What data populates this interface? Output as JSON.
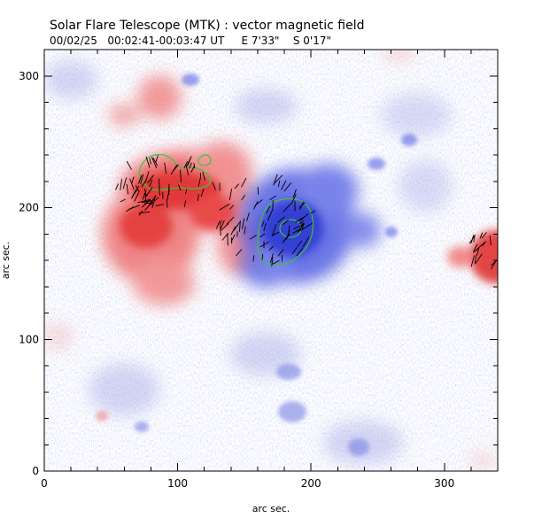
{
  "header": {
    "title": "Solar Flare Telescope (MTK) : vector magnetic field",
    "subtitle": "00/02/25   00:02:41-00:03:47 UT     E 7'33\"    S 0'17\""
  },
  "chart_data": {
    "type": "heatmap",
    "title": "Solar Flare Telescope (MTK) : vector magnetic field",
    "xlabel": "arc sec.",
    "ylabel": "arc sec.",
    "xlim": [
      0,
      340
    ],
    "ylim": [
      0,
      320
    ],
    "x_ticks": [
      {
        "value": 0,
        "label": "0"
      },
      {
        "value": 100,
        "label": "100"
      },
      {
        "value": 200,
        "label": "200"
      },
      {
        "value": 300,
        "label": "300"
      }
    ],
    "y_ticks": [
      {
        "value": 0,
        "label": "0"
      },
      {
        "value": 100,
        "label": "100"
      },
      {
        "value": 200,
        "label": "200"
      },
      {
        "value": 300,
        "label": "300"
      }
    ],
    "grid": false,
    "colors": {
      "positive_polarity": "#e03030",
      "negative_polarity": "#3a46d8",
      "contours": "#3cc43c",
      "vectors": "#000000"
    }
  }
}
